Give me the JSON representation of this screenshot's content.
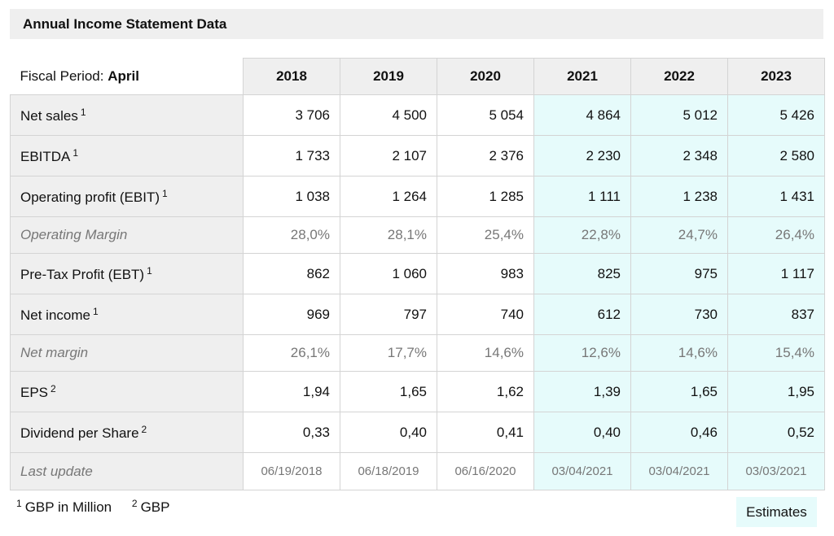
{
  "title": "Annual Income Statement Data",
  "fiscal_period": {
    "label": "Fiscal Period: ",
    "value": "April"
  },
  "years": [
    "2018",
    "2019",
    "2020",
    "2021",
    "2022",
    "2023"
  ],
  "rows": [
    {
      "label": "Net sales",
      "note": "1",
      "type": "main",
      "values": [
        "3 706",
        "4 500",
        "5 054",
        "4 864",
        "5 012",
        "5 426"
      ]
    },
    {
      "label": "EBITDA",
      "note": "1",
      "type": "main",
      "values": [
        "1 733",
        "2 107",
        "2 376",
        "2 230",
        "2 348",
        "2 580"
      ]
    },
    {
      "label": "Operating profit (EBIT)",
      "note": "1",
      "type": "main",
      "values": [
        "1 038",
        "1 264",
        "1 285",
        "1 111",
        "1 238",
        "1 431"
      ]
    },
    {
      "label": "Operating Margin",
      "note": "",
      "type": "sub",
      "values": [
        "28,0%",
        "28,1%",
        "25,4%",
        "22,8%",
        "24,7%",
        "26,4%"
      ]
    },
    {
      "label": "Pre-Tax Profit (EBT)",
      "note": "1",
      "type": "main",
      "values": [
        "862",
        "1 060",
        "983",
        "825",
        "975",
        "1 117"
      ]
    },
    {
      "label": "Net income",
      "note": "1",
      "type": "main",
      "values": [
        "969",
        "797",
        "740",
        "612",
        "730",
        "837"
      ]
    },
    {
      "label": "Net margin",
      "note": "",
      "type": "sub",
      "values": [
        "26,1%",
        "17,7%",
        "14,6%",
        "12,6%",
        "14,6%",
        "15,4%"
      ]
    },
    {
      "label": "EPS",
      "note": "2",
      "type": "main",
      "values": [
        "1,94",
        "1,65",
        "1,62",
        "1,39",
        "1,65",
        "1,95"
      ]
    },
    {
      "label": "Dividend per Share",
      "note": "2",
      "type": "main",
      "values": [
        "0,33",
        "0,40",
        "0,41",
        "0,40",
        "0,46",
        "0,52"
      ]
    },
    {
      "label": "Last update",
      "note": "",
      "type": "update",
      "values": [
        "06/19/2018",
        "06/18/2019",
        "06/16/2020",
        "03/04/2021",
        "03/04/2021",
        "03/03/2021"
      ]
    }
  ],
  "estimate_from_index": 3,
  "estimate_color": "#e6fbfb",
  "footnotes": [
    {
      "mark": "1",
      "text": "GBP in Million"
    },
    {
      "mark": "2",
      "text": "GBP"
    }
  ],
  "estimates_label": "Estimates"
}
